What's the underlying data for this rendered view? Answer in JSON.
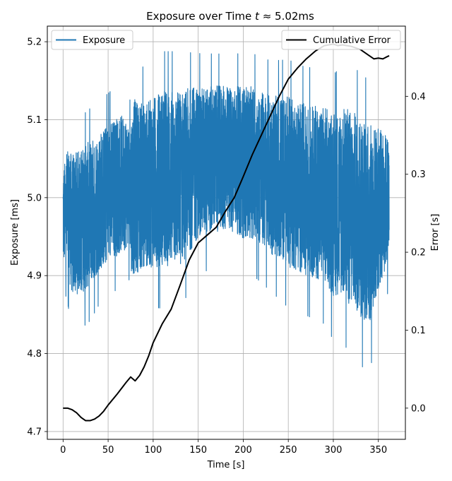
{
  "chart_data": {
    "type": "line",
    "title": "Exposure over Time t ≈ 5.02ms",
    "title_parts": {
      "main": "Exposure over Time ",
      "var": "t",
      "suffix": " ≈ 5.02ms"
    },
    "xlabel": "Time [s]",
    "ylabel_left": "Exposure [ms]",
    "ylabel_right": "Error [s]",
    "xlim": [
      -17.5,
      380
    ],
    "ylim_left": [
      4.69,
      5.22
    ],
    "ylim_right": [
      -0.04,
      0.49
    ],
    "x_ticks": [
      0,
      50,
      100,
      150,
      200,
      250,
      300,
      350
    ],
    "y_ticks_left": [
      4.7,
      4.8,
      4.9,
      5.0,
      5.1,
      5.2
    ],
    "y_ticks_right": [
      0.0,
      0.1,
      0.2,
      0.3,
      0.4
    ],
    "grid": true,
    "series": [
      {
        "name": "Exposure",
        "axis": "left",
        "color": "#1f77b4",
        "x_range": [
          0,
          362
        ],
        "envelope": {
          "x": [
            0,
            5,
            10,
            20,
            30,
            40,
            50,
            60,
            70,
            75,
            76,
            80,
            90,
            100,
            110,
            120,
            130,
            150,
            170,
            190,
            200,
            210,
            230,
            250,
            270,
            290,
            300,
            310,
            320,
            330,
            340,
            350,
            362
          ],
          "upper": [
            5.05,
            5.09,
            5.08,
            5.09,
            5.1,
            5.11,
            5.12,
            5.13,
            5.13,
            5.11,
            5.14,
            5.16,
            5.15,
            5.16,
            5.17,
            5.17,
            5.17,
            5.17,
            5.17,
            5.17,
            5.17,
            5.17,
            5.16,
            5.16,
            5.15,
            5.15,
            5.14,
            5.15,
            5.15,
            5.14,
            5.13,
            5.12,
            5.1
          ],
          "lower": [
            4.9,
            4.88,
            4.85,
            4.85,
            4.86,
            4.88,
            4.89,
            4.9,
            4.91,
            4.91,
            4.87,
            4.87,
            4.88,
            4.88,
            4.88,
            4.88,
            4.88,
            4.92,
            4.93,
            4.93,
            4.92,
            4.92,
            4.9,
            4.88,
            4.87,
            4.86,
            4.84,
            4.84,
            4.82,
            4.81,
            4.8,
            4.85,
            4.9
          ]
        }
      },
      {
        "name": "Cumulative Error",
        "axis": "right",
        "color": "#000000",
        "x": [
          0,
          5,
          10,
          15,
          20,
          25,
          30,
          35,
          40,
          45,
          50,
          60,
          70,
          75,
          80,
          85,
          90,
          95,
          100,
          110,
          120,
          130,
          140,
          150,
          160,
          170,
          180,
          190,
          200,
          210,
          220,
          230,
          240,
          250,
          260,
          270,
          280,
          290,
          300,
          305,
          310,
          320,
          330,
          340,
          345,
          350,
          355,
          360,
          362
        ],
        "y": [
          0.0,
          0.0,
          -0.002,
          -0.006,
          -0.012,
          -0.016,
          -0.016,
          -0.014,
          -0.01,
          -0.004,
          0.004,
          0.018,
          0.033,
          0.04,
          0.035,
          0.042,
          0.053,
          0.067,
          0.084,
          0.108,
          0.127,
          0.158,
          0.19,
          0.212,
          0.222,
          0.232,
          0.252,
          0.27,
          0.297,
          0.325,
          0.35,
          0.375,
          0.4,
          0.422,
          0.436,
          0.448,
          0.458,
          0.465,
          0.467,
          0.465,
          0.466,
          0.464,
          0.46,
          0.452,
          0.448,
          0.449,
          0.448,
          0.451,
          0.452
        ]
      }
    ]
  },
  "legend_left": {
    "label": "Exposure",
    "placement": "upper-left"
  },
  "legend_right": {
    "label": "Cumulative Error",
    "placement": "upper-right"
  }
}
